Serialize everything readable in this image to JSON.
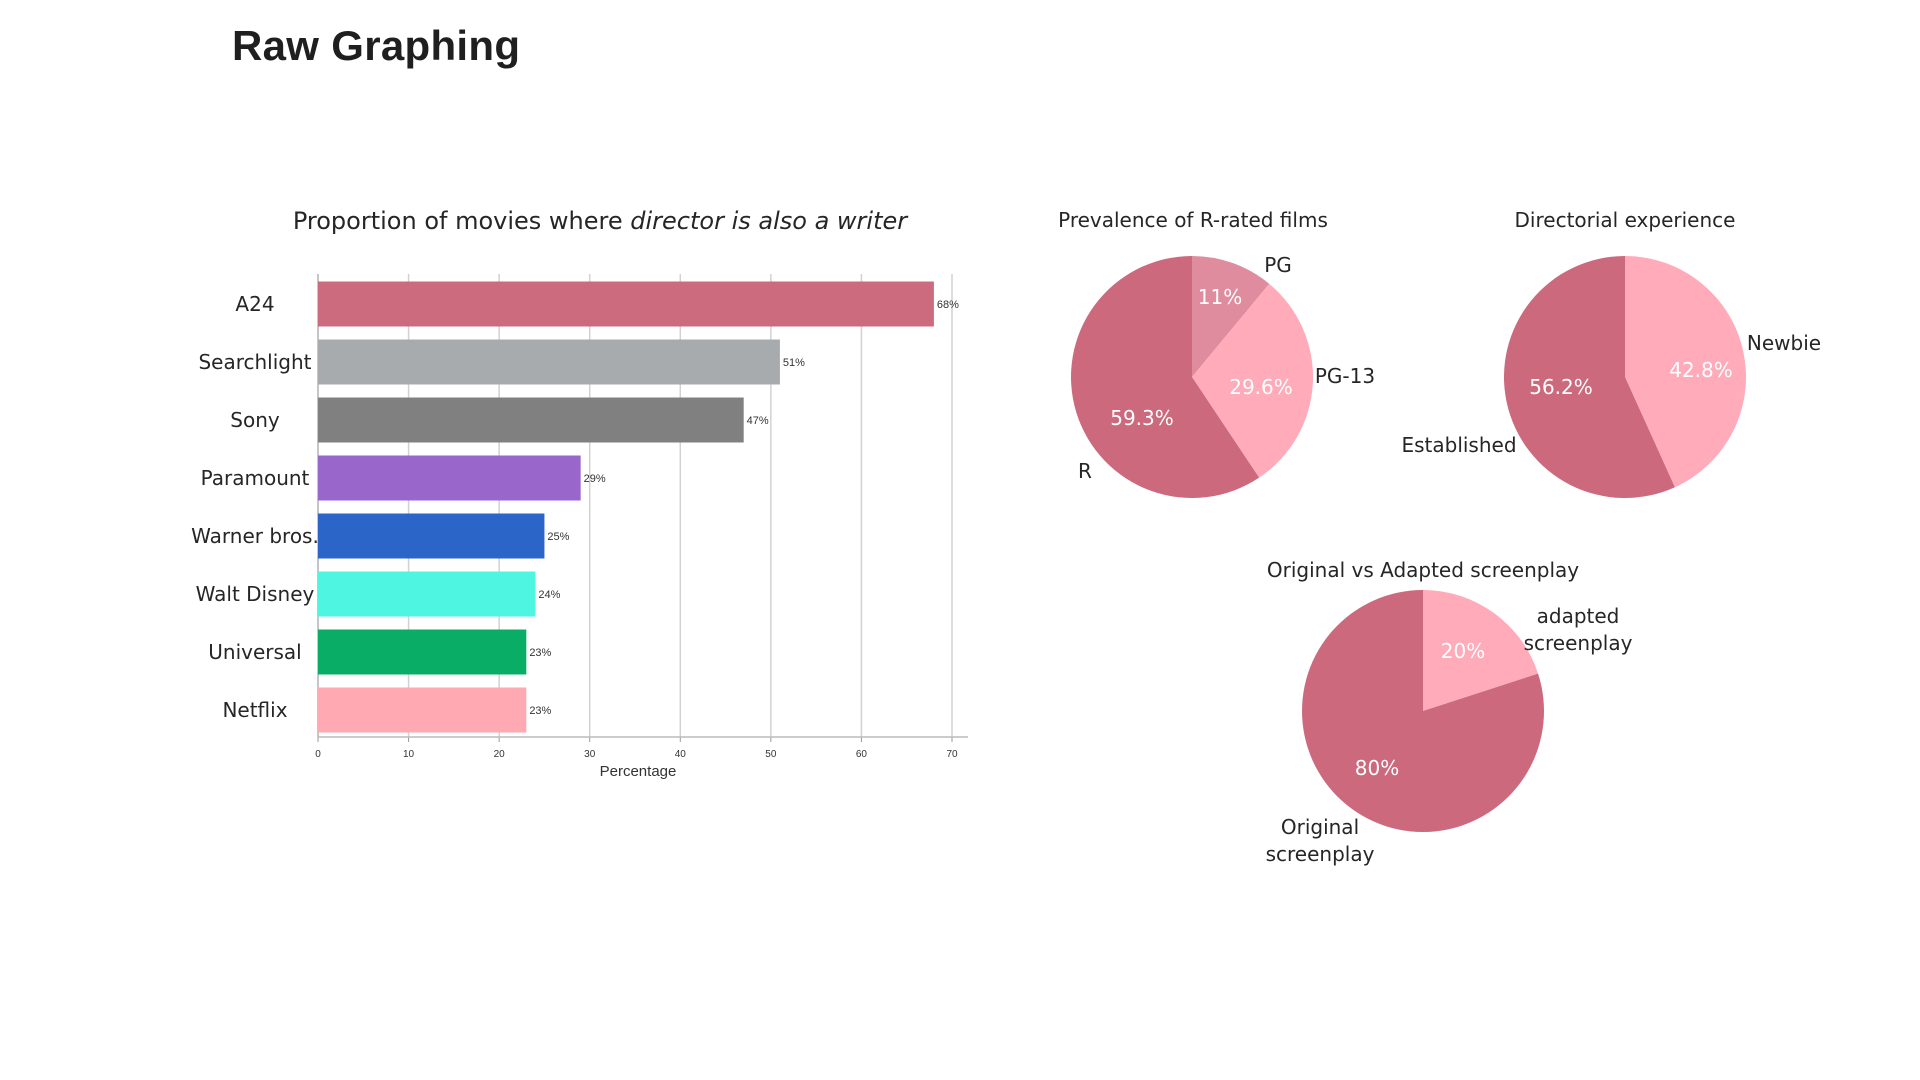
{
  "page": {
    "title": "Raw Graphing"
  },
  "chart_data": [
    {
      "type": "bar",
      "orientation": "horizontal",
      "title_parts": [
        "Proportion of movies where ",
        "director is also a writer"
      ],
      "xlabel": "Percentage",
      "ylabel": "",
      "xlim": [
        0,
        70
      ],
      "xticks": [
        0,
        10,
        20,
        30,
        40,
        50,
        60,
        70
      ],
      "grid": "vertical",
      "categories": [
        "A24",
        "Searchlight",
        "Sony",
        "Paramount",
        "Warner bros.",
        "Walt Disney",
        "Universal",
        "Netflix"
      ],
      "values": [
        68,
        51,
        47,
        29,
        25,
        24,
        23,
        23
      ],
      "value_labels": [
        "68%",
        "51%",
        "47%",
        "29%",
        "25%",
        "24%",
        "23%",
        "23%"
      ],
      "colors": [
        "#cc6a7e",
        "#a7abae",
        "#808080",
        "#9966cc",
        "#2b65c8",
        "#4ef5e0",
        "#0aad66",
        "#ffaab2"
      ]
    },
    {
      "type": "pie",
      "title": "Prevalence of R-rated films",
      "slices": [
        {
          "label": "PG",
          "value": 11,
          "value_label": "11%",
          "color": "#de8c9e"
        },
        {
          "label": "PG-13",
          "value": 29.6,
          "value_label": "29.6%",
          "color": "#ffabba"
        },
        {
          "label": "R",
          "value": 59.3,
          "value_label": "59.3%",
          "color": "#cc697d"
        }
      ]
    },
    {
      "type": "pie",
      "title": "Directorial experience",
      "slices": [
        {
          "label": "Newbie",
          "value": 42.8,
          "value_label": "42.8%",
          "color": "#ffabba"
        },
        {
          "label": "Established",
          "value": 56.2,
          "value_label": "56.2%",
          "color": "#cc697d"
        }
      ]
    },
    {
      "type": "pie",
      "title": "Original vs Adapted screenplay",
      "slices": [
        {
          "label": [
            "adapted",
            "screenplay"
          ],
          "value": 20,
          "value_label": "20%",
          "color": "#ffabba"
        },
        {
          "label": [
            "Original",
            "screenplay"
          ],
          "value": 80,
          "value_label": "80%",
          "color": "#cc697d"
        }
      ]
    }
  ]
}
